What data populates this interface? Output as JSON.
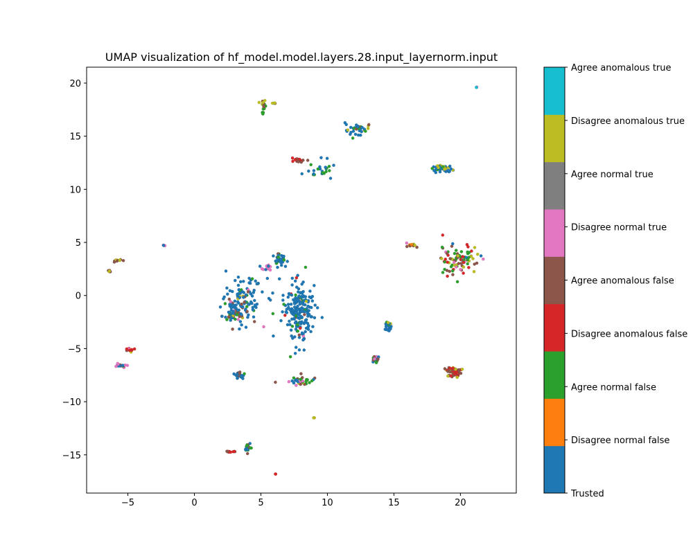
{
  "chart_data": {
    "type": "scatter",
    "title": "UMAP visualization of hf_model.model.layers.28.input_layernorm.input",
    "xlabel": "",
    "ylabel": "",
    "xlim": [
      -8.1,
      24.2
    ],
    "ylim": [
      -18.6,
      21.5
    ],
    "x_ticks": [
      -5,
      0,
      5,
      10,
      15,
      20
    ],
    "y_ticks": [
      -15,
      -10,
      -5,
      0,
      5,
      10,
      15,
      20
    ],
    "grid": false,
    "colorbar": {
      "position": "right",
      "labels": [
        "Trusted",
        "Disagree normal false",
        "Agree normal false",
        "Disagree anomalous false",
        "Agree anomalous false",
        "Disagree normal true",
        "Agree normal true",
        "Disagree anomalous true",
        "Agree anomalous true"
      ],
      "colors": [
        "#1f77b4",
        "#ff7f0e",
        "#2ca02c",
        "#d62728",
        "#8c564b",
        "#e377c2",
        "#7f7f7f",
        "#bcbd22",
        "#17becf"
      ]
    },
    "clusters": [
      {
        "x": 3.6,
        "y": -0.5,
        "spread": [
          1.6,
          2.2
        ],
        "count": 120,
        "mix": [
          0.75,
          0,
          0.12,
          0,
          0.06,
          0.04,
          0,
          0.03,
          0
        ]
      },
      {
        "x": 7.8,
        "y": -1.5,
        "spread": [
          1.1,
          3.0
        ],
        "count": 200,
        "mix": [
          0.85,
          0,
          0.07,
          0.02,
          0.03,
          0.02,
          0,
          0.01,
          0
        ]
      },
      {
        "x": 6.4,
        "y": 3.4,
        "spread": [
          0.5,
          0.5
        ],
        "count": 40,
        "mix": [
          0.6,
          0,
          0.3,
          0,
          0.05,
          0,
          0,
          0.05,
          0
        ]
      },
      {
        "x": 5.5,
        "y": 2.6,
        "spread": [
          0.4,
          0.3
        ],
        "count": 15,
        "mix": [
          0.2,
          0,
          0.2,
          0,
          0,
          0.6,
          0,
          0,
          0
        ]
      },
      {
        "x": 2.9,
        "y": -1.8,
        "spread": [
          0.8,
          0.5
        ],
        "count": 40,
        "mix": [
          0.5,
          0,
          0.2,
          0,
          0.2,
          0.05,
          0,
          0.05,
          0
        ]
      },
      {
        "x": 7.9,
        "y": -8.0,
        "spread": [
          0.9,
          0.4
        ],
        "count": 45,
        "mix": [
          0.35,
          0,
          0.3,
          0,
          0.15,
          0.15,
          0,
          0.05,
          0
        ]
      },
      {
        "x": 3.3,
        "y": -7.5,
        "spread": [
          0.6,
          0.3
        ],
        "count": 25,
        "mix": [
          0.9,
          0,
          0.05,
          0,
          0.05,
          0,
          0,
          0,
          0
        ]
      },
      {
        "x": 13.6,
        "y": -6.1,
        "spread": [
          0.3,
          0.4
        ],
        "count": 18,
        "mix": [
          0.3,
          0,
          0.3,
          0,
          0.1,
          0.2,
          0,
          0.1,
          0
        ]
      },
      {
        "x": 14.6,
        "y": -2.9,
        "spread": [
          0.3,
          0.6
        ],
        "count": 20,
        "mix": [
          0.8,
          0,
          0.15,
          0,
          0,
          0,
          0,
          0.05,
          0
        ]
      },
      {
        "x": 4.0,
        "y": -14.3,
        "spread": [
          0.2,
          0.4
        ],
        "count": 25,
        "mix": [
          0.5,
          0,
          0.4,
          0,
          0.1,
          0,
          0,
          0,
          0
        ]
      },
      {
        "x": 2.6,
        "y": -14.7,
        "spread": [
          0.5,
          0.05
        ],
        "count": 10,
        "mix": [
          0,
          0,
          0,
          0.6,
          0.4,
          0,
          0,
          0,
          0
        ]
      },
      {
        "x": 6.1,
        "y": -16.8,
        "spread": [
          0.03,
          0.03
        ],
        "count": 2,
        "mix": [
          0,
          0,
          0,
          1,
          0,
          0,
          0,
          0,
          0
        ]
      },
      {
        "x": 9.0,
        "y": -11.5,
        "spread": [
          0.05,
          0.05
        ],
        "count": 3,
        "mix": [
          0,
          0,
          0,
          0,
          0.3,
          0,
          0,
          0.7,
          0
        ]
      },
      {
        "x": 18.6,
        "y": 12.0,
        "spread": [
          0.8,
          0.25
        ],
        "count": 60,
        "mix": [
          0.75,
          0,
          0.1,
          0,
          0,
          0,
          0,
          0.15,
          0
        ]
      },
      {
        "x": 19.5,
        "y": -7.2,
        "spread": [
          0.6,
          0.5
        ],
        "count": 55,
        "mix": [
          0,
          0,
          0,
          0.35,
          0.5,
          0,
          0,
          0.15,
          0
        ]
      },
      {
        "x": 19.9,
        "y": 3.4,
        "spread": [
          1.6,
          1.3
        ],
        "count": 90,
        "mix": [
          0.05,
          0,
          0.25,
          0.2,
          0.2,
          0.15,
          0,
          0.15,
          0
        ]
      },
      {
        "x": 16.3,
        "y": 4.7,
        "spread": [
          0.4,
          0.3
        ],
        "count": 12,
        "mix": [
          0,
          0.2,
          0.2,
          0,
          0.3,
          0.1,
          0,
          0.2,
          0
        ]
      },
      {
        "x": 9.5,
        "y": 11.8,
        "spread": [
          0.9,
          0.9
        ],
        "count": 25,
        "mix": [
          0.6,
          0,
          0.35,
          0,
          0,
          0.05,
          0,
          0,
          0
        ]
      },
      {
        "x": 12.2,
        "y": 15.6,
        "spread": [
          1.1,
          0.6
        ],
        "count": 35,
        "mix": [
          0.65,
          0,
          0.15,
          0,
          0.1,
          0.05,
          0,
          0.05,
          0
        ]
      },
      {
        "x": 7.9,
        "y": 12.7,
        "spread": [
          0.5,
          0.2
        ],
        "count": 20,
        "mix": [
          0,
          0,
          0,
          0.5,
          0.5,
          0,
          0,
          0,
          0
        ]
      },
      {
        "x": 5.2,
        "y": 18.0,
        "spread": [
          0.2,
          0.4
        ],
        "count": 18,
        "mix": [
          0,
          0,
          0.3,
          0,
          0.2,
          0,
          0,
          0.5,
          0
        ]
      },
      {
        "x": 5.2,
        "y": 17.2,
        "spread": [
          0.1,
          0.1
        ],
        "count": 4,
        "mix": [
          0,
          0,
          1,
          0,
          0,
          0,
          0,
          0,
          0
        ]
      },
      {
        "x": 6.0,
        "y": 18.1,
        "spread": [
          0.15,
          0.05
        ],
        "count": 5,
        "mix": [
          0.3,
          0,
          0,
          0,
          0.3,
          0,
          0,
          0.4,
          0
        ]
      },
      {
        "x": 21.2,
        "y": 19.6,
        "spread": [
          0.05,
          0.05
        ],
        "count": 3,
        "mix": [
          0,
          0,
          0,
          0,
          0,
          0.5,
          0,
          0,
          0.5
        ]
      },
      {
        "x": -2.3,
        "y": 4.7,
        "spread": [
          0.1,
          0.05
        ],
        "count": 5,
        "mix": [
          0.2,
          0,
          0,
          0,
          0,
          0.8,
          0,
          0,
          0
        ]
      },
      {
        "x": -5.7,
        "y": 3.3,
        "spread": [
          0.5,
          0.1
        ],
        "count": 14,
        "mix": [
          0,
          0,
          0,
          0,
          0.6,
          0,
          0,
          0.4,
          0
        ]
      },
      {
        "x": -6.4,
        "y": 2.3,
        "spread": [
          0.1,
          0.1
        ],
        "count": 5,
        "mix": [
          0,
          0,
          0,
          0,
          0.5,
          0,
          0,
          0.5,
          0
        ]
      },
      {
        "x": -5.6,
        "y": -6.6,
        "spread": [
          0.6,
          0.15
        ],
        "count": 18,
        "mix": [
          0.4,
          0,
          0.2,
          0.1,
          0.1,
          0.2,
          0,
          0,
          0
        ]
      },
      {
        "x": -4.8,
        "y": -5.1,
        "spread": [
          0.4,
          0.2
        ],
        "count": 12,
        "mix": [
          0,
          0,
          0,
          0.5,
          0.2,
          0.2,
          0,
          0.1,
          0
        ]
      }
    ]
  }
}
